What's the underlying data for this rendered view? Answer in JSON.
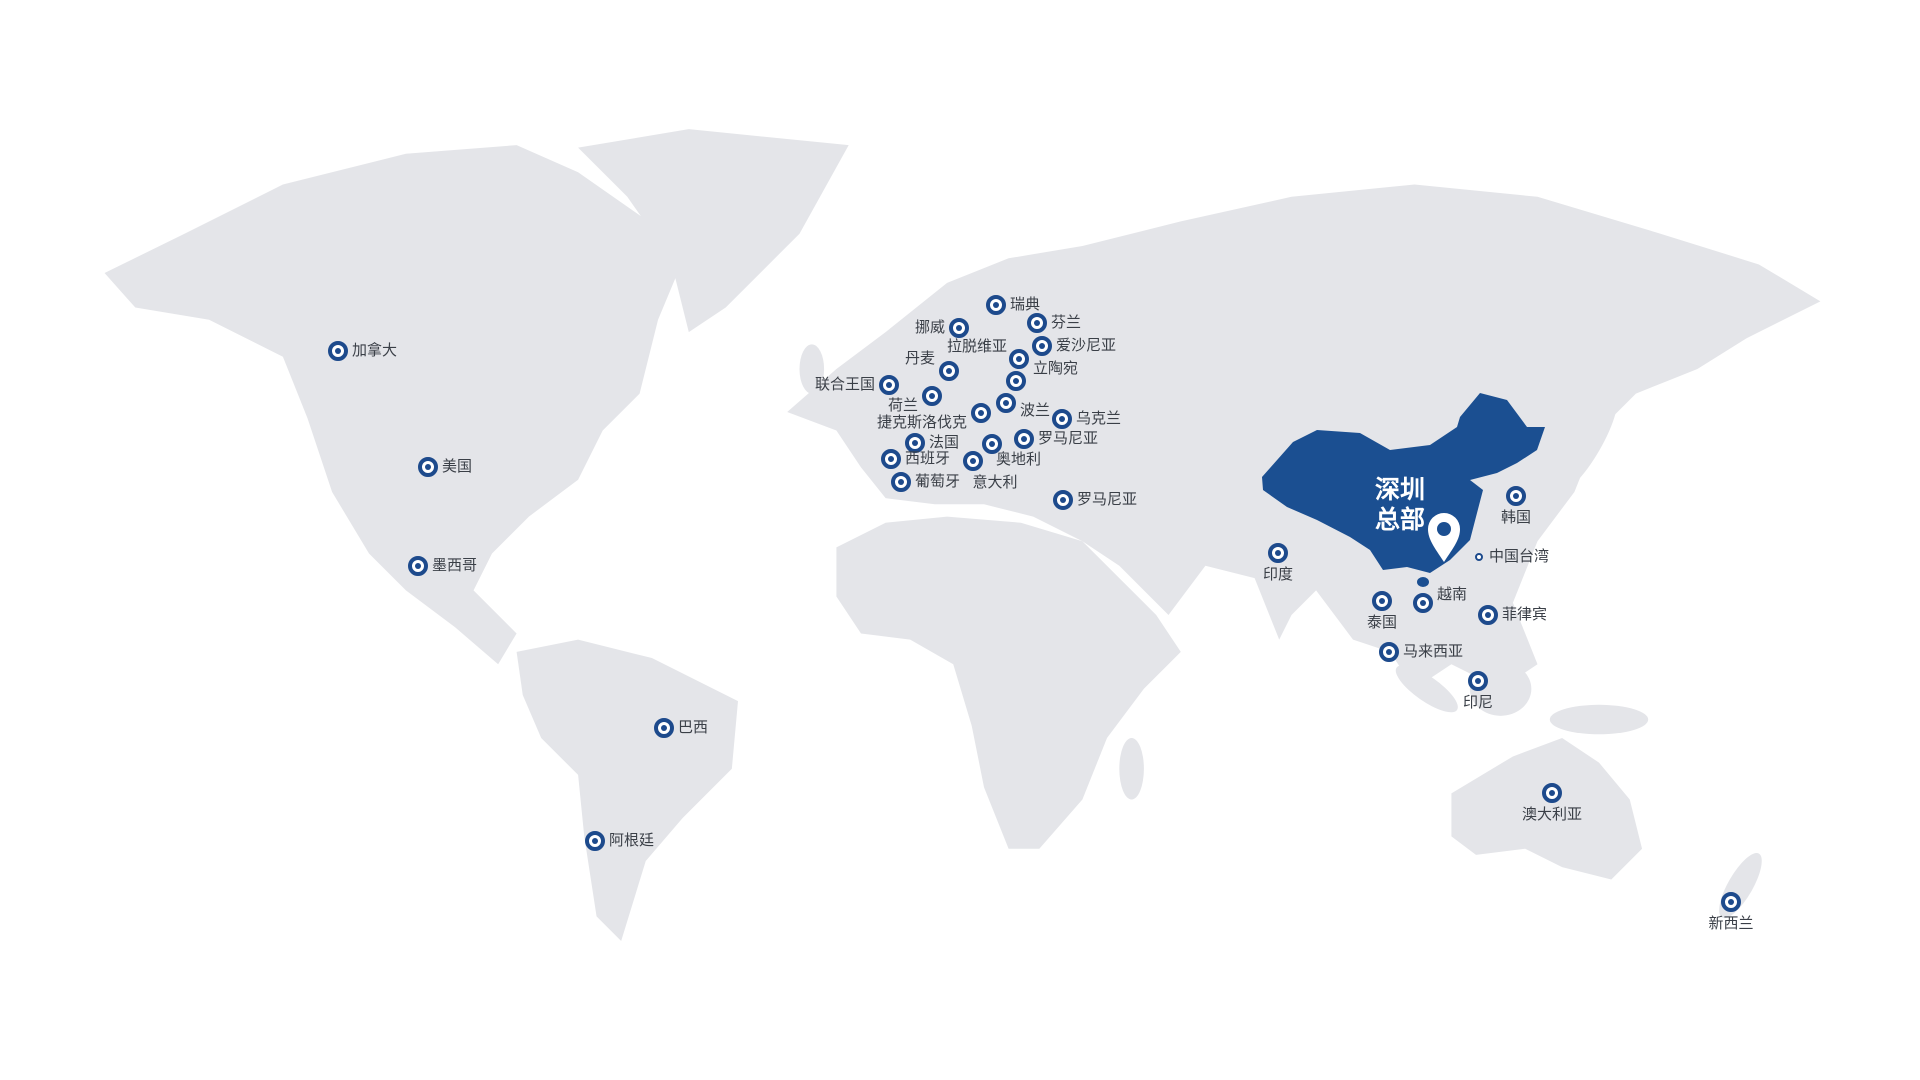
{
  "colors": {
    "land": "#e4e5e9",
    "china": "#1b4f91",
    "marker": "#1d4a8c",
    "label": "#3a3f47"
  },
  "headquarters": {
    "line1": "深圳",
    "line2": "总部",
    "icon": "map-pin-icon"
  },
  "locations": {
    "canada": "加拿大",
    "usa": "美国",
    "mexico": "墨西哥",
    "brazil": "巴西",
    "argentina": "阿根廷",
    "sweden": "瑞典",
    "norway": "挪威",
    "finland": "芬兰",
    "estonia": "爱沙尼亚",
    "latvia": "拉脱维亚",
    "lithuania": "立陶宛",
    "denmark": "丹麦",
    "uk": "联合王国",
    "netherlands": "荷兰",
    "poland": "波兰",
    "czechoslovakia": "捷克斯洛伐克",
    "ukraine": "乌克兰",
    "france": "法国",
    "romania": "罗马尼亚",
    "austria": "奥地利",
    "spain": "西班牙",
    "italy": "意大利",
    "portugal": "葡萄牙",
    "romania2": "罗马尼亚",
    "korea": "韩国",
    "taiwan": "中国台湾",
    "india": "印度",
    "vietnam": "越南",
    "thailand": "泰国",
    "philippines": "菲律宾",
    "malaysia": "马来西亚",
    "indonesia": "印尼",
    "australia": "澳大利亚",
    "newzealand": "新西兰"
  }
}
